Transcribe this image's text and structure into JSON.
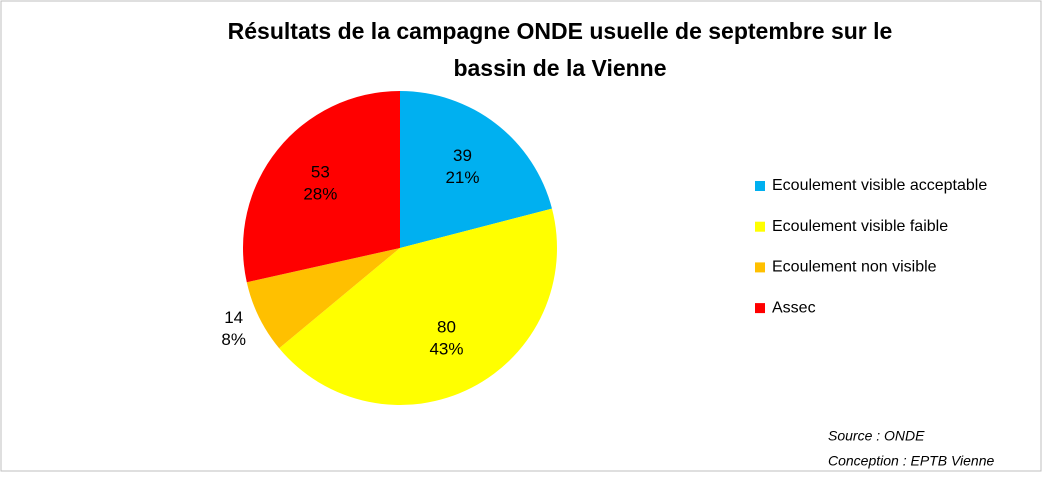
{
  "chart_data": {
    "type": "pie",
    "title": [
      "Résultats de la campagne ONDE usuelle de septembre sur le",
      "bassin de la Vienne"
    ],
    "categories": [
      "Ecoulement visible acceptable",
      "Ecoulement visible faible",
      "Ecoulement non visible",
      "Assec"
    ],
    "values": [
      39,
      80,
      14,
      53
    ],
    "percent_labels": [
      "21%",
      "43%",
      "8%",
      "28%"
    ],
    "colors": [
      "#00b0f0",
      "#ffff00",
      "#ffc000",
      "#ff0000"
    ],
    "legend": "right",
    "notes": [
      "Source : ONDE",
      "Conception : EPTB Vienne"
    ]
  }
}
